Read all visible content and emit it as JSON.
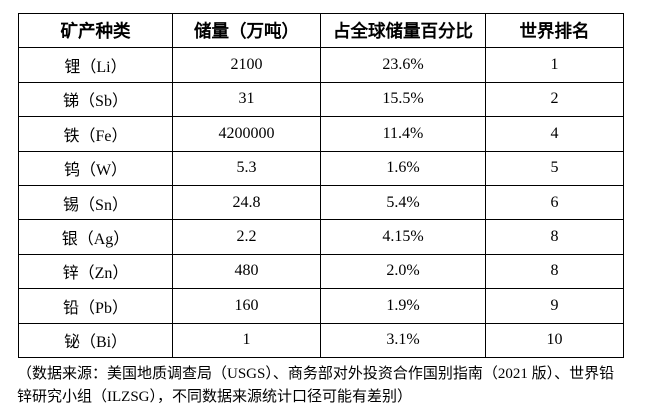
{
  "table": {
    "columns": [
      "矿产种类",
      "储量（万吨）",
      "占全球储量百分比",
      "世界排名"
    ],
    "rows": [
      [
        "锂（Li）",
        "2100",
        "23.6%",
        "1"
      ],
      [
        "锑（Sb）",
        "31",
        "15.5%",
        "2"
      ],
      [
        "铁（Fe）",
        "4200000",
        "11.4%",
        "4"
      ],
      [
        "钨（W）",
        "5.3",
        "1.6%",
        "5"
      ],
      [
        "锡（Sn）",
        "24.8",
        "5.4%",
        "6"
      ],
      [
        "银（Ag）",
        "2.2",
        "4.15%",
        "8"
      ],
      [
        "锌（Zn）",
        "480",
        "2.0%",
        "8"
      ],
      [
        "铅（Pb）",
        "160",
        "1.9%",
        "9"
      ],
      [
        "铋（Bi）",
        "1",
        "3.1%",
        "10"
      ]
    ]
  },
  "footer": {
    "source_note_lines": [
      "（数据来源：美国地质调查局（USGS）、商务部对外投资合作国别指南（2021 版）、世界铅",
      "锌研究小组（ILZSG），不同数据来源统计口径可能有差别）"
    ]
  },
  "colors": {
    "border": "#000000",
    "text": "#000000",
    "background": "#ffffff"
  }
}
